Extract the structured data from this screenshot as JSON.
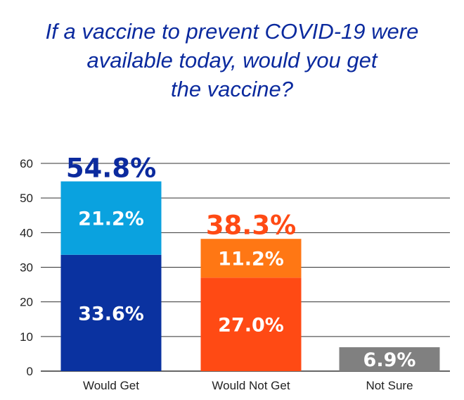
{
  "chart_data": {
    "type": "bar",
    "stacked": true,
    "title": "If a vaccine to prevent COVID-19 were\navailable today,  would you get\nthe vaccine?",
    "categories": [
      "Would Get",
      "Would Not Get",
      "Not Sure"
    ],
    "segments": [
      [
        {
          "value": 33.6,
          "label": "33.6%",
          "color": "#0a32a0"
        },
        {
          "value": 21.2,
          "label": "21.2%",
          "color": "#0aa2df"
        }
      ],
      [
        {
          "value": 27.0,
          "label": "27.0%",
          "color": "#ff4a14"
        },
        {
          "value": 11.2,
          "label": "11.2%",
          "color": "#ff7714"
        }
      ],
      [
        {
          "value": 6.9,
          "label": "6.9%",
          "color": "#808080"
        }
      ]
    ],
    "totals": [
      {
        "value": 54.8,
        "label": "54.8%",
        "color": "#0b2a9e"
      },
      {
        "value": 38.3,
        "label": "38.3%",
        "color": "#ff4a14"
      },
      null
    ],
    "ylim": [
      0,
      60
    ],
    "yticks": [
      0,
      10,
      20,
      30,
      40,
      50,
      60
    ],
    "grid": true,
    "gridColor": "#333333",
    "xlabel": "",
    "ylabel": ""
  }
}
